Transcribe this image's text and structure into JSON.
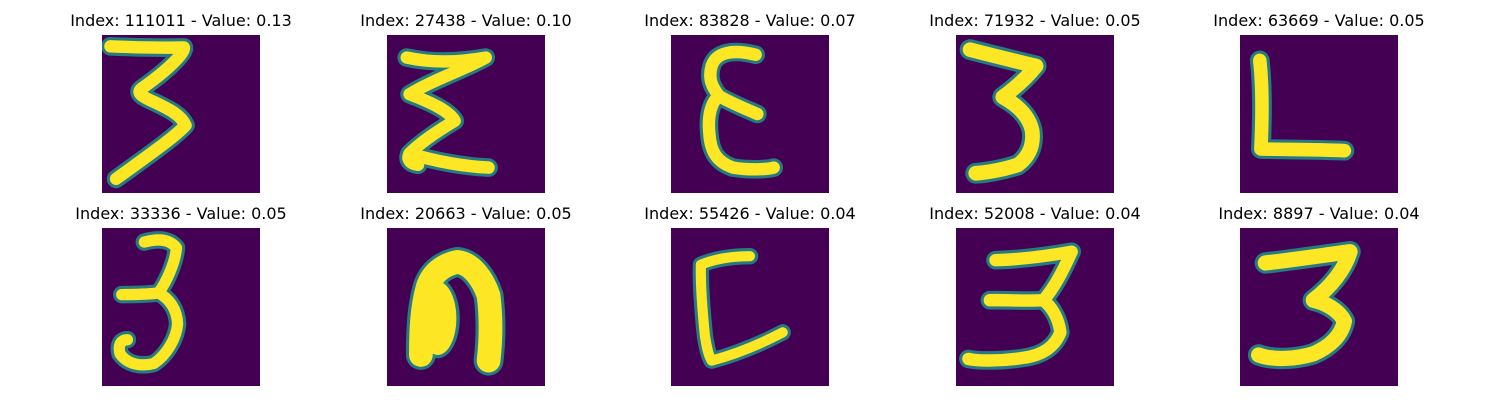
{
  "chart_data": {
    "type": "image-grid",
    "rows": 2,
    "columns": 5,
    "colormap": {
      "name": "viridis",
      "background": "#440154",
      "mid": "#21918c",
      "foreground": "#fde725"
    },
    "axes_visible": false,
    "panels": [
      {
        "title": "Index: 111011 - Value: 0.13",
        "index": 111011,
        "value": 0.13,
        "glyph": "3-flat-top"
      },
      {
        "title": "Index: 27438 - Value: 0.10",
        "index": 27438,
        "value": 0.1,
        "glyph": "sigma"
      },
      {
        "title": "Index: 83828 - Value: 0.07",
        "index": 83828,
        "value": 0.07,
        "glyph": "epsilon"
      },
      {
        "title": "Index: 71932 - Value: 0.05",
        "index": 71932,
        "value": 0.05,
        "glyph": "3-pointed"
      },
      {
        "title": "Index: 63669 - Value: 0.05",
        "index": 63669,
        "value": 0.05,
        "glyph": "L"
      },
      {
        "title": "Index: 33336 - Value: 0.05",
        "index": 33336,
        "value": 0.05,
        "glyph": "3-round"
      },
      {
        "title": "Index: 20663 - Value: 0.05",
        "index": 20663,
        "value": 0.05,
        "glyph": "n-thick"
      },
      {
        "title": "Index: 55426 - Value: 0.04",
        "index": 55426,
        "value": 0.04,
        "glyph": "L-open"
      },
      {
        "title": "Index: 52008 - Value: 0.04",
        "index": 52008,
        "value": 0.04,
        "glyph": "3-wide"
      },
      {
        "title": "Index: 8897 - Value: 0.04",
        "index": 8897,
        "value": 0.04,
        "glyph": "3-bold"
      }
    ]
  }
}
